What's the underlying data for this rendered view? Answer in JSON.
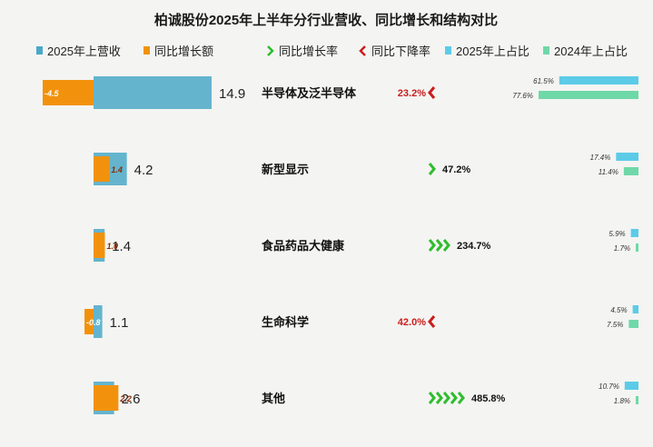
{
  "chart_data": {
    "type": "bar",
    "title": "柏诚股份2025年上半年分行业营收、同比增长和结构对比",
    "legend": {
      "revenue": "2025年上营收",
      "change": "同比增长额",
      "rate_up": "同比增长率",
      "rate_down": "同比下降率",
      "share_2025": "2025年上占比",
      "share_2024": "2024年上占比"
    },
    "categories": [
      "半导体及泛半导体",
      "新型显示",
      "食品药品大健康",
      "生命科学",
      "其他"
    ],
    "series": [
      {
        "name": "2025年上营收",
        "values": [
          14.9,
          4.2,
          1.4,
          1.1,
          2.6
        ],
        "labels": [
          "14.9",
          "4.2",
          "1.4",
          "1.1",
          "2.6"
        ]
      },
      {
        "name": "同比增长额",
        "values": [
          -4.5,
          1.4,
          1.0,
          -0.8,
          2.2
        ],
        "labels": [
          "-4.5",
          "1.4",
          "1.0",
          "-0.8",
          "2.2"
        ]
      },
      {
        "name": "同比增长率",
        "values": [
          -23.2,
          47.2,
          234.7,
          -42.0,
          485.8
        ],
        "labels": [
          "23.2%",
          "47.2%",
          "234.7%",
          "42.0%",
          "485.8%"
        ]
      },
      {
        "name": "2025年上占比",
        "values": [
          61.5,
          17.4,
          5.9,
          4.5,
          10.7
        ],
        "labels": [
          "61.5%",
          "17.4%",
          "5.9%",
          "4.5%",
          "10.7%"
        ]
      },
      {
        "name": "2024年上占比",
        "values": [
          77.6,
          11.4,
          1.7,
          7.5,
          1.8
        ],
        "labels": [
          "77.6%",
          "11.4%",
          "1.7%",
          "7.5%",
          "1.8%"
        ]
      }
    ],
    "colors": {
      "revenue": "#4aa8c8",
      "change": "#f2920c",
      "rate_up": "#2ebd2e",
      "rate_down": "#c81e1e",
      "share_2025": "#5ccbe8",
      "share_2024": "#6fd8a8"
    }
  }
}
